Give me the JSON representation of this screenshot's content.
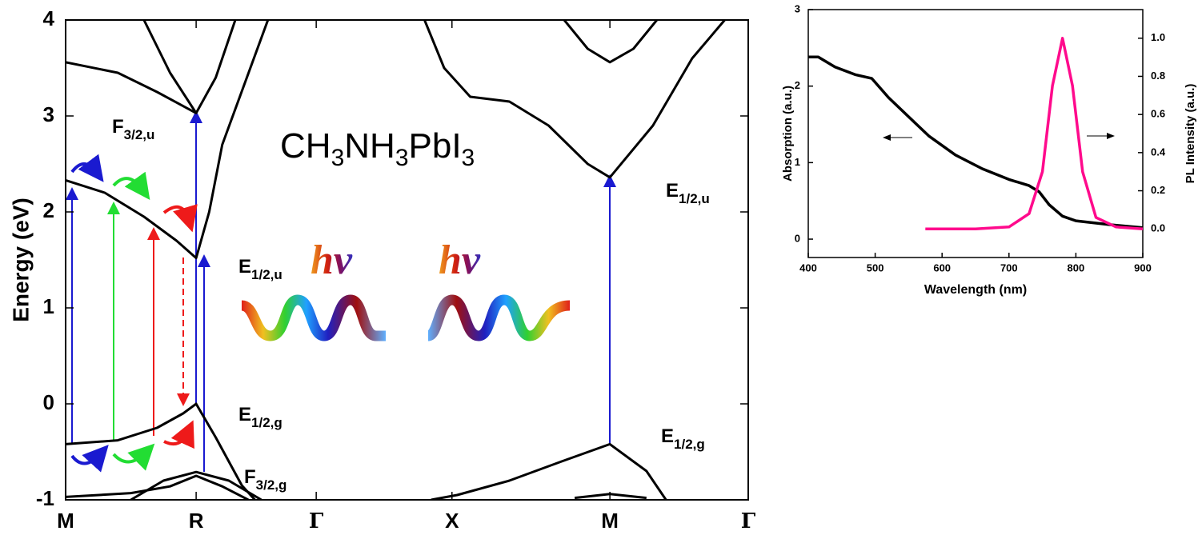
{
  "chart_data": [
    {
      "type": "line",
      "title_parts": [
        "CH",
        "3",
        "NH",
        "3",
        "PbI",
        "3"
      ],
      "y_label": "Energy (eV)",
      "xlim": [
        0,
        5.23
      ],
      "xticks": [
        {
          "value": 0,
          "label": "M"
        },
        {
          "value": 1,
          "label": "R"
        },
        {
          "value": 1.92,
          "label": "Γ"
        },
        {
          "value": 2.96,
          "label": "X"
        },
        {
          "value": 4.17,
          "label": "M"
        },
        {
          "value": 5.23,
          "label": "Γ"
        }
      ],
      "ylim": [
        -1,
        4
      ],
      "yticks": [
        -1,
        0,
        1,
        2,
        3,
        4
      ],
      "annotations": [
        {
          "main": "F",
          "sub": "3/2,u"
        },
        {
          "main": "E",
          "sub": "1/2,u"
        },
        {
          "main": "E",
          "sub": "1/2,g"
        },
        {
          "main": "F",
          "sub": "3/2,g"
        },
        {
          "main": "E",
          "sub": "1/2,u"
        },
        {
          "main": "E",
          "sub": "1/2,g"
        }
      ],
      "photon_labels": [
        "hv",
        "hv"
      ],
      "series": [
        {
          "color": "#000000",
          "x": [
            0,
            0.4,
            0.7,
            0.9,
            1.0,
            1.15,
            1.35,
            1.45
          ],
          "values": [
            -0.42,
            -0.38,
            -0.25,
            -0.1,
            0,
            -0.35,
            -0.85,
            -1.0
          ]
        },
        {
          "color": "#000000",
          "x": [
            2.8,
            3.0,
            3.4,
            3.8,
            4.17,
            4.45,
            4.6
          ],
          "values": [
            -1.0,
            -0.95,
            -0.8,
            -0.6,
            -0.42,
            -0.7,
            -1.0
          ]
        },
        {
          "color": "#000000",
          "x": [
            0,
            0.3,
            0.6,
            0.85,
            1.0,
            1.1,
            1.2,
            1.55
          ],
          "values": [
            2.33,
            2.2,
            1.95,
            1.7,
            1.52,
            2.0,
            2.7,
            4.0
          ]
        },
        {
          "color": "#000000",
          "x": [
            0,
            0.4,
            0.7,
            1.0,
            1.15,
            1.3
          ],
          "values": [
            3.56,
            3.45,
            3.25,
            3.03,
            3.4,
            4.0
          ]
        },
        {
          "color": "#000000",
          "x": [
            0.6,
            0.8,
            1.0
          ],
          "values": [
            4.0,
            3.45,
            3.03
          ]
        },
        {
          "color": "#000000",
          "x": [
            2.75,
            2.9,
            3.1,
            3.4,
            3.7,
            4.0,
            4.17,
            4.5,
            4.8,
            5.05
          ],
          "values": [
            4.0,
            3.5,
            3.2,
            3.15,
            2.9,
            2.5,
            2.36,
            2.9,
            3.6,
            4.0
          ]
        },
        {
          "color": "#000000",
          "x": [
            3.82,
            4.0,
            4.17,
            4.35,
            4.53
          ],
          "values": [
            4.0,
            3.7,
            3.56,
            3.7,
            4.0
          ]
        },
        {
          "color": "#000000",
          "x": [
            0.5,
            0.75,
            1.0,
            1.25,
            1.5
          ],
          "values": [
            -1.0,
            -0.8,
            -0.71,
            -0.8,
            -1.0
          ]
        },
        {
          "color": "#000000",
          "x": [
            0,
            0.5,
            0.8,
            1.0,
            1.2,
            1.4
          ],
          "values": [
            -0.97,
            -0.93,
            -0.86,
            -0.75,
            -0.86,
            -1.0
          ]
        },
        {
          "color": "#000000",
          "x": [
            3.9,
            4.17,
            4.45
          ],
          "values": [
            -0.98,
            -0.94,
            -0.98
          ]
        }
      ]
    },
    {
      "type": "line",
      "x_label": "Wavelength (nm)",
      "y_label": "Absorption (a.u.)",
      "y2_label": "PL Intensity (a.u.)",
      "xlim": [
        400,
        900
      ],
      "xticks": [
        400,
        500,
        600,
        700,
        800,
        900
      ],
      "ylim": [
        -0.24,
        3
      ],
      "yticks": [
        0,
        1,
        2,
        3
      ],
      "y2lim": [
        -0.15,
        1.15
      ],
      "y2ticks": [
        {
          "value": 0,
          "label": "0.0"
        },
        {
          "value": 0.2,
          "label": "0.2"
        },
        {
          "value": 0.4,
          "label": "0.4"
        },
        {
          "value": 0.6,
          "label": "0.6"
        },
        {
          "value": 0.8,
          "label": "0.8"
        },
        {
          "value": 1,
          "label": "1.0"
        }
      ],
      "series": [
        {
          "color": "#000000",
          "x": [
            400,
            415,
            440,
            470,
            495,
            520,
            550,
            580,
            620,
            660,
            700,
            730,
            745,
            760,
            780,
            800,
            850,
            900
          ],
          "values": [
            2.38,
            2.38,
            2.25,
            2.15,
            2.1,
            1.85,
            1.6,
            1.35,
            1.1,
            0.92,
            0.78,
            0.7,
            0.62,
            0.45,
            0.3,
            0.24,
            0.19,
            0.15
          ]
        },
        {
          "color": "#ff0a8c",
          "axis": "y2",
          "x": [
            575,
            650,
            700,
            730,
            750,
            765,
            780,
            795,
            810,
            830,
            860,
            900
          ],
          "values": [
            0,
            0,
            0.01,
            0.08,
            0.3,
            0.75,
            1.0,
            0.75,
            0.3,
            0.06,
            0.01,
            0
          ]
        }
      ]
    }
  ]
}
